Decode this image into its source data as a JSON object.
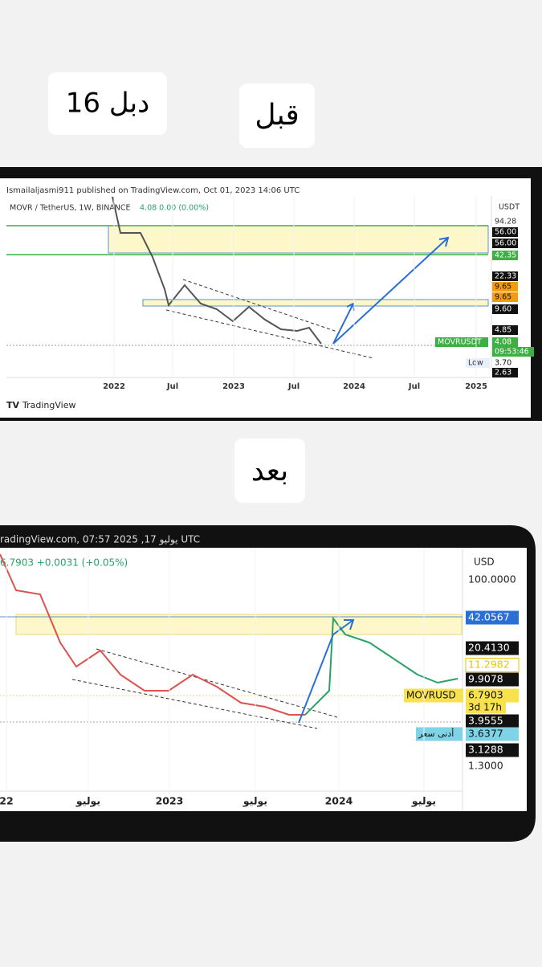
{
  "stickers": {
    "top_left": "16 دبل",
    "top_right": "قبل",
    "middle": "بعد"
  },
  "before_chart": {
    "header": "Ismailaljasmi911 published on TradingView.com, Oct 01, 2023 14:06 UTC",
    "symbol": "MOVR / TetherUS, 1W, BINANCE",
    "ohlc": "4.08  0.00 (0.00%)",
    "currency": "USDT",
    "price_labels": [
      "94.28",
      "56.00",
      "56.00",
      "42.35",
      "22.33",
      "9.65",
      "9.65",
      "9.60",
      "4.85",
      "4.08",
      "3.70",
      "2.63"
    ],
    "ticker": "MOVRUSDT",
    "countdown": "09:53:46",
    "low_label": "Low",
    "x_labels": [
      "2022",
      "Jul",
      "2023",
      "Jul",
      "2024",
      "Jul",
      "2025"
    ],
    "brand": "TradingView"
  },
  "after_chart": {
    "header": "radingView.com, 07:57 2025 ,17 يوليو UTC",
    "ohlc": "6.7903  +0.0031 (+0.05%)",
    "currency": "USD",
    "price_labels": [
      "100.0000",
      "42.0567",
      "20.4130",
      "11.2982",
      "9.9078",
      "6.7903",
      "3.9555",
      "3.6377",
      "3.1288",
      "1.3000"
    ],
    "ticker": "MOVRUSD",
    "countdown": "3d 17h",
    "low_label": "أدنى سعر",
    "x_labels": [
      "22",
      "يوليو",
      "2023",
      "يوليو",
      "2024",
      "يوليو"
    ]
  }
}
